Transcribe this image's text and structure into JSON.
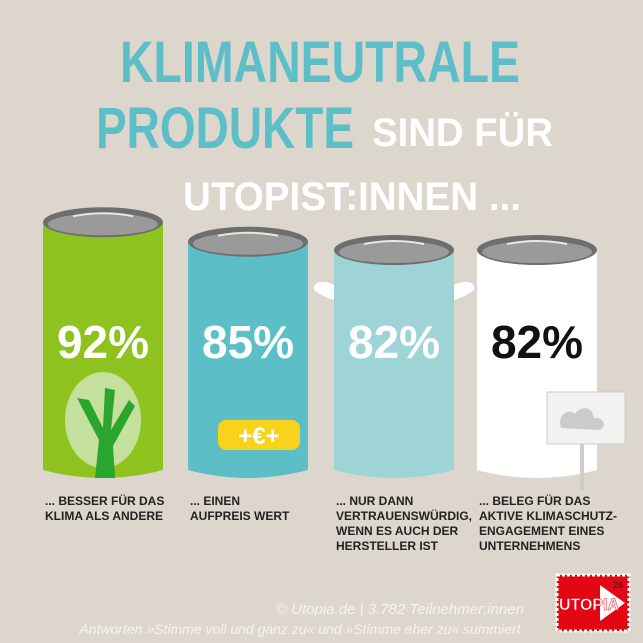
{
  "chart_data": {
    "type": "bar",
    "title_lines": [
      "KLIMANEUTRALE",
      "PRODUKTE",
      "SIND FÜR",
      "UTOPIST:INNEN ..."
    ],
    "categories": [
      [
        "... BESSER FÜR DAS",
        "KLIMA ALS ANDERE"
      ],
      [
        "... EINEN",
        "AUFPREIS WERT"
      ],
      [
        "... NUR DANN",
        "VERTRAUENSWÜRDIG,",
        "WENN ES AUCH DER",
        "HERSTELLER IST"
      ],
      [
        "... BELEG FÜR DAS",
        "AKTIVE KLIMASCHUTZ-",
        "ENGAGEMENT EINES",
        "UNTERNEHMENS"
      ]
    ],
    "values": [
      92,
      85,
      82,
      82
    ],
    "value_labels": [
      "92%",
      "85%",
      "82%",
      "82%"
    ],
    "colors": [
      "#8dc21f",
      "#5cbfc7",
      "#9fd4d7",
      "#ffffff"
    ],
    "label_colors": [
      "#ffffff",
      "#ffffff",
      "#ffffff",
      "#111111"
    ],
    "ylim": [
      0,
      100
    ],
    "annotation": "+€+",
    "source": "© Utopia.de | 3.782 Teilnehmer:innen",
    "note": "Antworten »Stimme voll und ganz zu« und  »Stimme eher zu« summiert",
    "logo": "UTOPIA",
    "logo_number": "24"
  }
}
